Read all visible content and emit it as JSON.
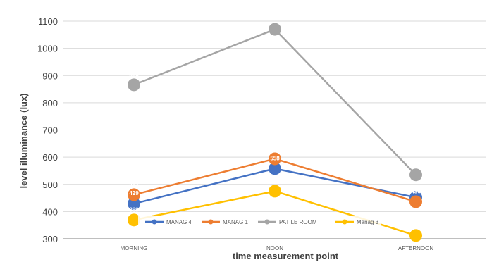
{
  "chart_data": {
    "type": "line",
    "title": "",
    "xlabel": "time measurement point",
    "ylabel": "level illuminance (lux)",
    "categories": [
      "MORNING",
      "NOON",
      "AFTERNOON"
    ],
    "ylim": [
      300,
      1100
    ],
    "yticks": [
      300,
      400,
      500,
      600,
      700,
      800,
      900,
      1000,
      1100
    ],
    "grid": "horizontal",
    "legend_position": "bottom-inside",
    "series": [
      {
        "name": "MANAG 4",
        "values": [
          429,
          558,
          452
        ],
        "labels": [
          "429",
          "558",
          "452"
        ],
        "color": "#4472C4"
      },
      {
        "name": "MANAG 1",
        "values": [
          462,
          594,
          436
        ],
        "labels": [
          "462",
          "594",
          "436"
        ],
        "color": "#ED7D31"
      },
      {
        "name": "PATILE ROOM",
        "values": [
          866,
          1070,
          535
        ],
        "labels": [
          "866",
          "1070",
          "535"
        ],
        "color": "#A5A5A5"
      },
      {
        "name": "Manag 3",
        "values": [
          369,
          475,
          312
        ],
        "labels": [
          "369",
          "475",
          "312"
        ],
        "color": "#FFC000"
      }
    ]
  }
}
